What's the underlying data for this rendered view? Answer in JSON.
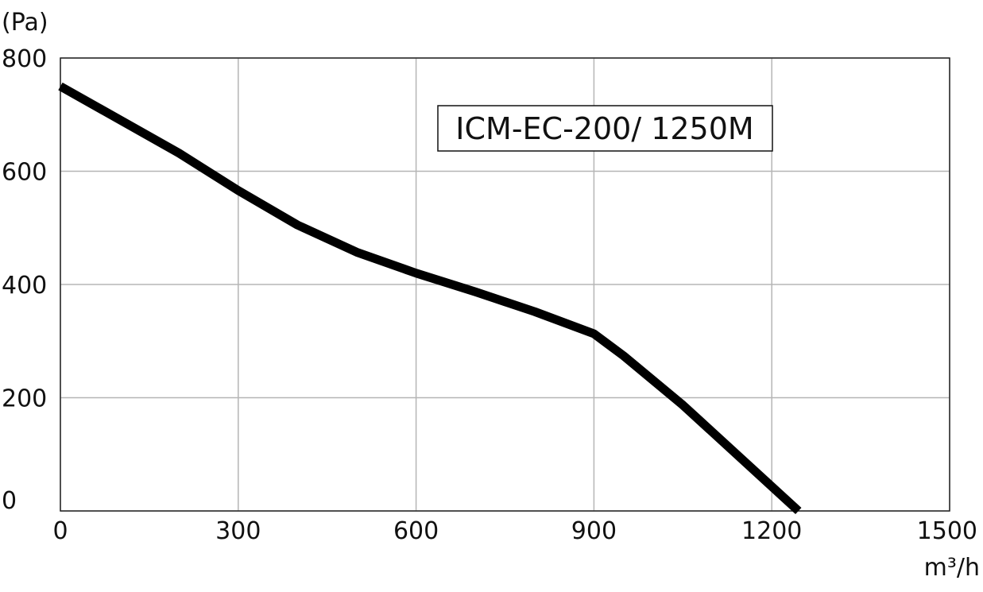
{
  "chart_data": {
    "type": "line",
    "title": "ICM-EC-200/ 1250M",
    "y_label": "(Pa)",
    "x_label": "m³/h",
    "x": [
      0,
      200,
      300,
      400,
      500,
      600,
      700,
      800,
      900,
      950,
      1050,
      1245
    ],
    "series": [
      {
        "name": "ICM-EC-200/ 1250M",
        "color": "#000000",
        "values": [
          750,
          632,
          566,
          505,
          457,
          420,
          387,
          352,
          313,
          274,
          187,
          0
        ]
      }
    ],
    "xlim": [
      0,
      1500
    ],
    "xticks": [
      0,
      300,
      600,
      900,
      1200,
      1500
    ],
    "ylim": [
      0,
      800
    ],
    "yticks": [
      0,
      200,
      400,
      600,
      800
    ],
    "grid": true
  }
}
